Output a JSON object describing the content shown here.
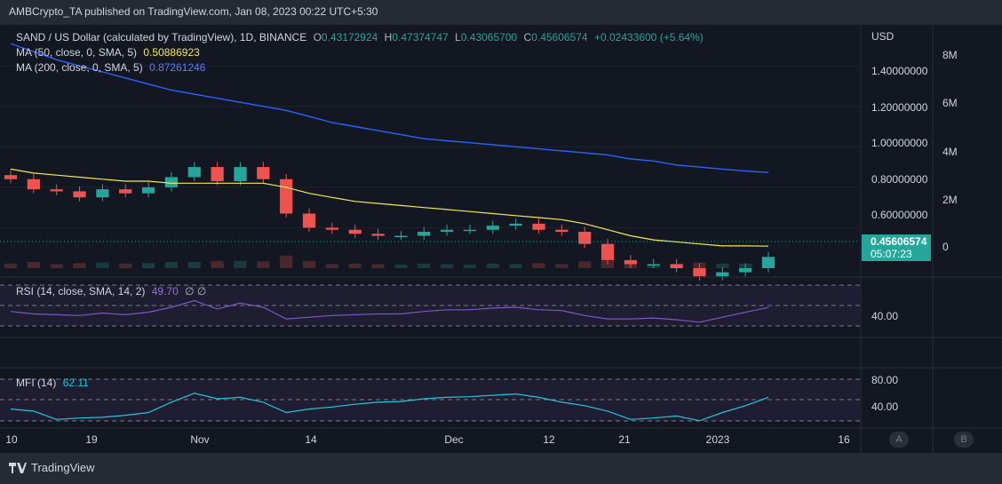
{
  "header": {
    "text": "AMBCrypto_TA published on TradingView.com, Jan 08, 2023 00:22 UTC+5:30"
  },
  "footer": {
    "brand": "TradingView"
  },
  "legend": {
    "symbol": "SAND / US Dollar (calculated by TradingView), 1D, BINANCE",
    "o_label": "O",
    "o": "0.43172924",
    "h_label": "H",
    "h": "0.47374747",
    "l_label": "L",
    "l": "0.43065700",
    "c_label": "C",
    "c": "0.45606574",
    "change": "+0.02433600 (+5.64%)",
    "ma50_label": "MA (50, close, 0, SMA, 5)",
    "ma50_value": "0.50886923",
    "ma200_label": "MA (200, close, 0, SMA, 5)",
    "ma200_value": "0.87261246",
    "rsi_label": "RSI (14, close, SMA, 14, 2)",
    "rsi_value": "49.70",
    "rsi_extra": "∅ ∅",
    "mfi_label": "MFI (14)",
    "mfi_value": "62.11"
  },
  "axes": {
    "currency": "USD",
    "price_ticks": [
      "1.40000000",
      "1.20000000",
      "1.00000000",
      "0.80000000",
      "0.60000000"
    ],
    "volume_ticks": [
      "8M",
      "6M",
      "4M",
      "2M",
      "0"
    ],
    "rsi_ticks": [
      "40.00"
    ],
    "mfi_ticks": [
      "80.00",
      "40.00"
    ],
    "x_ticks": [
      "10",
      "19",
      "Nov",
      "14",
      "Dec",
      "12",
      "21",
      "2023",
      "16"
    ],
    "last_price": "0.45606574",
    "countdown": "05:07:23",
    "scale_buttons": [
      "A",
      "B"
    ]
  },
  "colors": {
    "up": "#26a69a",
    "down": "#ef5350",
    "ma50": "#f5e94f",
    "ma200": "#2962ff",
    "rsi": "#7e57c2",
    "mfi": "#26c6da"
  },
  "chart_data": {
    "type": "candlestick",
    "title": "SAND / US Dollar (calculated by TradingView), 1D, BINANCE",
    "ylabel": "USD",
    "ylim": [
      0.4,
      1.55
    ],
    "dates": [
      "Oct 10",
      "Oct 13",
      "Oct 16",
      "Oct 19",
      "Oct 22",
      "Oct 25",
      "Oct 28",
      "Oct 31",
      "Nov 01",
      "Nov 03",
      "Nov 05",
      "Nov 07",
      "Nov 09",
      "Nov 11",
      "Nov 14",
      "Nov 17",
      "Nov 20",
      "Nov 23",
      "Nov 26",
      "Nov 29",
      "Dec 01",
      "Dec 04",
      "Dec 07",
      "Dec 10",
      "Dec 12",
      "Dec 15",
      "Dec 18",
      "Dec 21",
      "Dec 24",
      "Dec 27",
      "Dec 30",
      "Jan 01",
      "Jan 04",
      "Jan 07"
    ],
    "close": [
      0.84,
      0.79,
      0.78,
      0.75,
      0.79,
      0.77,
      0.8,
      0.85,
      0.9,
      0.83,
      0.9,
      0.84,
      0.67,
      0.6,
      0.59,
      0.57,
      0.56,
      0.56,
      0.58,
      0.59,
      0.59,
      0.61,
      0.62,
      0.59,
      0.58,
      0.52,
      0.44,
      0.42,
      0.42,
      0.4,
      0.36,
      0.38,
      0.4,
      0.456
    ],
    "series": [
      {
        "name": "MA (50, close, 0, SMA, 5)",
        "values": [
          0.89,
          0.87,
          0.86,
          0.85,
          0.84,
          0.83,
          0.83,
          0.82,
          0.82,
          0.82,
          0.82,
          0.82,
          0.8,
          0.77,
          0.75,
          0.73,
          0.72,
          0.71,
          0.7,
          0.69,
          0.68,
          0.67,
          0.66,
          0.65,
          0.64,
          0.62,
          0.59,
          0.56,
          0.54,
          0.53,
          0.52,
          0.51,
          0.51,
          0.509
        ]
      },
      {
        "name": "MA (200, close, 0, SMA, 5)",
        "values": [
          1.51,
          1.47,
          1.43,
          1.4,
          1.37,
          1.34,
          1.31,
          1.28,
          1.26,
          1.24,
          1.22,
          1.2,
          1.18,
          1.15,
          1.12,
          1.1,
          1.08,
          1.06,
          1.04,
          1.03,
          1.02,
          1.01,
          1.0,
          0.99,
          0.98,
          0.97,
          0.96,
          0.94,
          0.93,
          0.91,
          0.9,
          0.89,
          0.88,
          0.873
        ]
      }
    ],
    "rsi": [
      45,
      42,
      41,
      40,
      43,
      41,
      44,
      50,
      58,
      48,
      55,
      50,
      36,
      38,
      40,
      41,
      42,
      42,
      45,
      47,
      47,
      49,
      50,
      47,
      46,
      40,
      36,
      36,
      37,
      35,
      32,
      38,
      44,
      49.7
    ],
    "mfi": [
      45,
      42,
      30,
      32,
      33,
      36,
      40,
      55,
      68,
      60,
      62,
      55,
      40,
      45,
      48,
      52,
      55,
      56,
      60,
      62,
      63,
      65,
      67,
      62,
      55,
      50,
      42,
      30,
      32,
      35,
      28,
      40,
      50,
      62.11
    ],
    "rsi_ylim": [
      20,
      80
    ],
    "mfi_ylim": [
      20,
      100
    ],
    "x_tick_labels": [
      "10",
      "19",
      "Nov",
      "14",
      "Dec",
      "12",
      "21",
      "2023",
      "16"
    ]
  }
}
